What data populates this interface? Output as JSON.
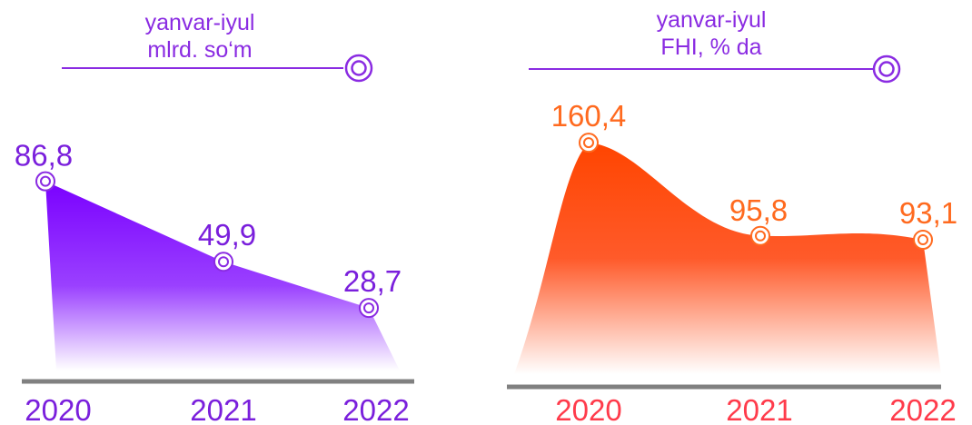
{
  "chart_data": [
    {
      "type": "area",
      "header": [
        "yanvar-iyul",
        "mlrd. so‘m"
      ],
      "categories": [
        "2020",
        "2021",
        "2022"
      ],
      "values": [
        86.8,
        49.9,
        28.7
      ],
      "value_labels": [
        "86,8",
        "49,9",
        "28,7"
      ],
      "ylim": [
        0,
        120
      ],
      "grid": false,
      "colors": {
        "fill_top": "#7a00ff",
        "fill_bottom": "#ffffff",
        "text": "#7a1fdc",
        "marker": "#8a2be2"
      }
    },
    {
      "type": "area",
      "header": [
        "yanvar-iyul",
        "FHI, % da"
      ],
      "categories": [
        "2020",
        "2021",
        "2022"
      ],
      "values": [
        160.4,
        95.8,
        93.1
      ],
      "value_labels": [
        "160,4",
        "95,8",
        "93,1"
      ],
      "ylim": [
        0,
        185
      ],
      "grid": false,
      "colors": {
        "fill_top": "#ff4500",
        "fill_bottom": "#ffffff",
        "text": "#ff6a1f",
        "year_text": "#ff3b4b",
        "marker": "#ff6a1f"
      }
    }
  ]
}
